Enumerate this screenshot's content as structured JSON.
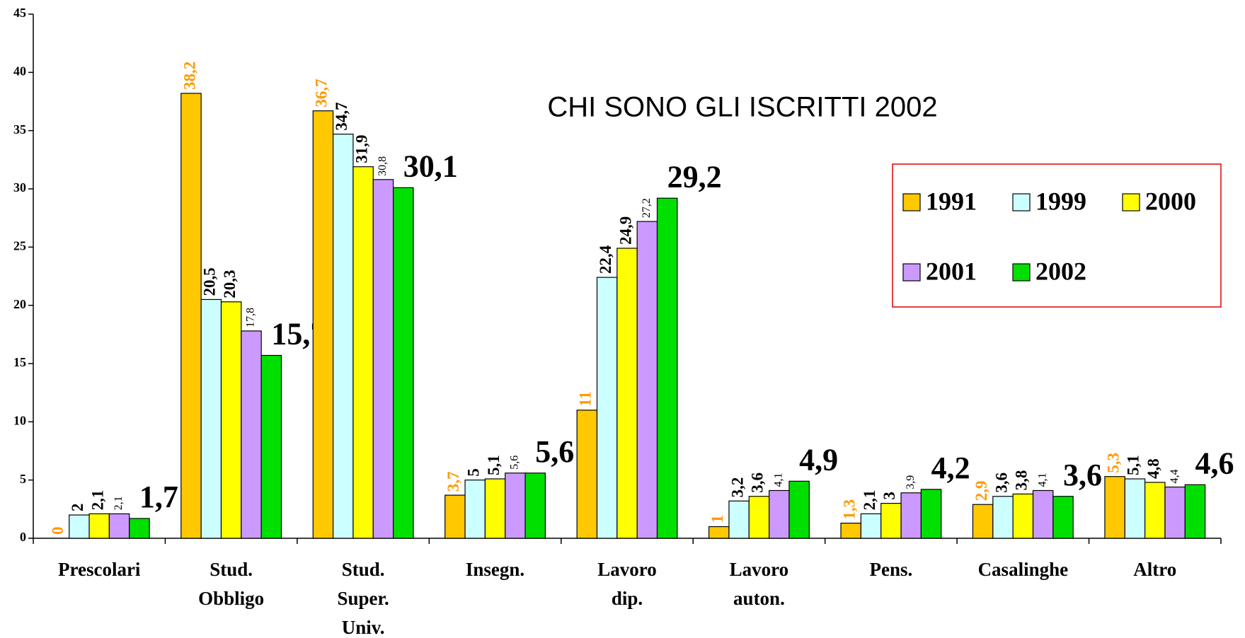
{
  "chart_data": {
    "type": "bar",
    "title": "CHI SONO GLI ISCRITTI 2002",
    "categories": [
      "Prescolari",
      "Stud. Obbligo",
      "Stud. Super. Univ.",
      "Insegn.",
      "Lavoro dip.",
      "Lavoro auton.",
      "Pens.",
      "Casalinghe",
      "Altro"
    ],
    "series": [
      {
        "name": "1991",
        "color": "#ffc800",
        "values": [
          0,
          38.2,
          36.7,
          3.7,
          11,
          1,
          1.3,
          2.9,
          5.3
        ],
        "value_labels": [
          "0",
          "38,2",
          "36,7",
          "3,7",
          "11",
          "1",
          "1,3",
          "2,9",
          "5,3"
        ]
      },
      {
        "name": "1999",
        "color": "#ccffff",
        "values": [
          2,
          20.5,
          34.7,
          5,
          22.4,
          3.2,
          2.1,
          3.6,
          5.1
        ],
        "value_labels": [
          "2",
          "20,5",
          "34,7",
          "5",
          "22,4",
          "3,2",
          "2,1",
          "3,6",
          "5,1"
        ]
      },
      {
        "name": "2000",
        "color": "#ffff00",
        "values": [
          2.1,
          20.3,
          31.9,
          5.1,
          24.9,
          3.6,
          3,
          3.8,
          4.8
        ],
        "value_labels": [
          "2,1",
          "20,3",
          "31,9",
          "5,1",
          "24,9",
          "3,6",
          "3",
          "3,8",
          "4,8"
        ]
      },
      {
        "name": "2001",
        "color": "#cc99ff",
        "values": [
          2.1,
          17.8,
          30.8,
          5.6,
          27.2,
          4.1,
          3.9,
          4.1,
          4.4
        ],
        "value_labels": [
          "2,1",
          "17,8",
          "30,8",
          "5,6",
          "27,2",
          "4,1",
          "3,9",
          "4,1",
          "4,4"
        ]
      },
      {
        "name": "2002",
        "color": "#00e000",
        "values": [
          1.7,
          15.7,
          30.1,
          5.6,
          29.2,
          4.9,
          4.2,
          3.6,
          4.6
        ],
        "value_labels": [
          "1,7",
          "15,7",
          "30,1",
          "5,6",
          "29,2",
          "4,9",
          "4,2",
          "3,6",
          "4,6"
        ]
      }
    ],
    "ylim": [
      0,
      45
    ],
    "yticks": [
      0,
      5,
      10,
      15,
      20,
      25,
      30,
      35,
      40,
      45
    ],
    "legend": "upper right"
  }
}
